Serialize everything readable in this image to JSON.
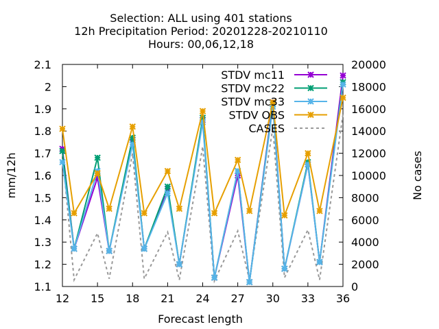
{
  "chart_data": {
    "type": "line",
    "title": [
      "Selection: ALL using   401 stations",
      "12h Precipitation   Period: 20201228-20210110",
      "Hours:  00,06,12,18"
    ],
    "xlabel": "Forecast length",
    "ylabel": "mm/12h",
    "y2label": "No cases",
    "xlim": [
      12,
      36
    ],
    "ylim": [
      1.1,
      2.1
    ],
    "y2lim": [
      0,
      20000
    ],
    "xticks": [
      12,
      15,
      18,
      21,
      24,
      27,
      30,
      33,
      36
    ],
    "yticks": [
      1.1,
      1.2,
      1.3,
      1.4,
      1.5,
      1.6,
      1.7,
      1.8,
      1.9,
      2,
      2.1
    ],
    "y2ticks": [
      0,
      2000,
      4000,
      6000,
      8000,
      10000,
      12000,
      14000,
      16000,
      18000,
      20000
    ],
    "xtick_labels": [
      "12",
      "15",
      "18",
      "21",
      "24",
      "27",
      "30",
      "33",
      "36"
    ],
    "ytick_labels": [
      "1.1",
      "1.2",
      "1.3",
      "1.4",
      "1.5",
      "1.6",
      "1.7",
      "1.8",
      "1.9",
      "2",
      "2.1"
    ],
    "y2tick_labels": [
      "0",
      "2000",
      "4000",
      "6000",
      "8000",
      "10000",
      "12000",
      "14000",
      "16000",
      "18000",
      "20000"
    ],
    "legend_position": "top-right",
    "x": [
      12,
      13,
      15,
      16,
      18,
      19,
      21,
      22,
      24,
      25,
      27,
      28,
      30,
      31,
      33,
      34,
      36
    ],
    "series": [
      {
        "name": "STDV mc11",
        "color": "#9400d3",
        "axis": "y1",
        "style": "solid-marker",
        "values": [
          1.72,
          1.27,
          1.59,
          1.26,
          1.76,
          1.27,
          1.54,
          1.2,
          1.85,
          1.14,
          1.6,
          1.12,
          1.93,
          1.18,
          1.65,
          1.21,
          2.05
        ]
      },
      {
        "name": "STDV mc22",
        "color": "#009e73",
        "axis": "y1",
        "style": "solid-marker",
        "values": [
          1.71,
          1.27,
          1.68,
          1.26,
          1.77,
          1.27,
          1.55,
          1.2,
          1.86,
          1.14,
          1.62,
          1.12,
          1.92,
          1.18,
          1.66,
          1.21,
          2.02
        ]
      },
      {
        "name": "STDV mc33",
        "color": "#56b4e9",
        "axis": "y1",
        "style": "solid-marker",
        "values": [
          1.66,
          1.27,
          1.62,
          1.26,
          1.74,
          1.27,
          1.52,
          1.2,
          1.84,
          1.14,
          1.62,
          1.12,
          1.91,
          1.18,
          1.65,
          1.21,
          2.01
        ]
      },
      {
        "name": "STDV OBS",
        "color": "#e69f00",
        "axis": "y1",
        "style": "solid-marker",
        "values": [
          1.81,
          1.43,
          1.61,
          1.45,
          1.82,
          1.43,
          1.62,
          1.45,
          1.89,
          1.43,
          1.67,
          1.44,
          1.93,
          1.42,
          1.7,
          1.44,
          1.95
        ]
      },
      {
        "name": "CASES",
        "color": "#999999",
        "axis": "y2",
        "style": "dashed",
        "values": [
          12000,
          600,
          4800,
          700,
          12000,
          700,
          4900,
          600,
          12600,
          500,
          5000,
          600,
          14300,
          800,
          5100,
          600,
          15500
        ]
      }
    ]
  }
}
